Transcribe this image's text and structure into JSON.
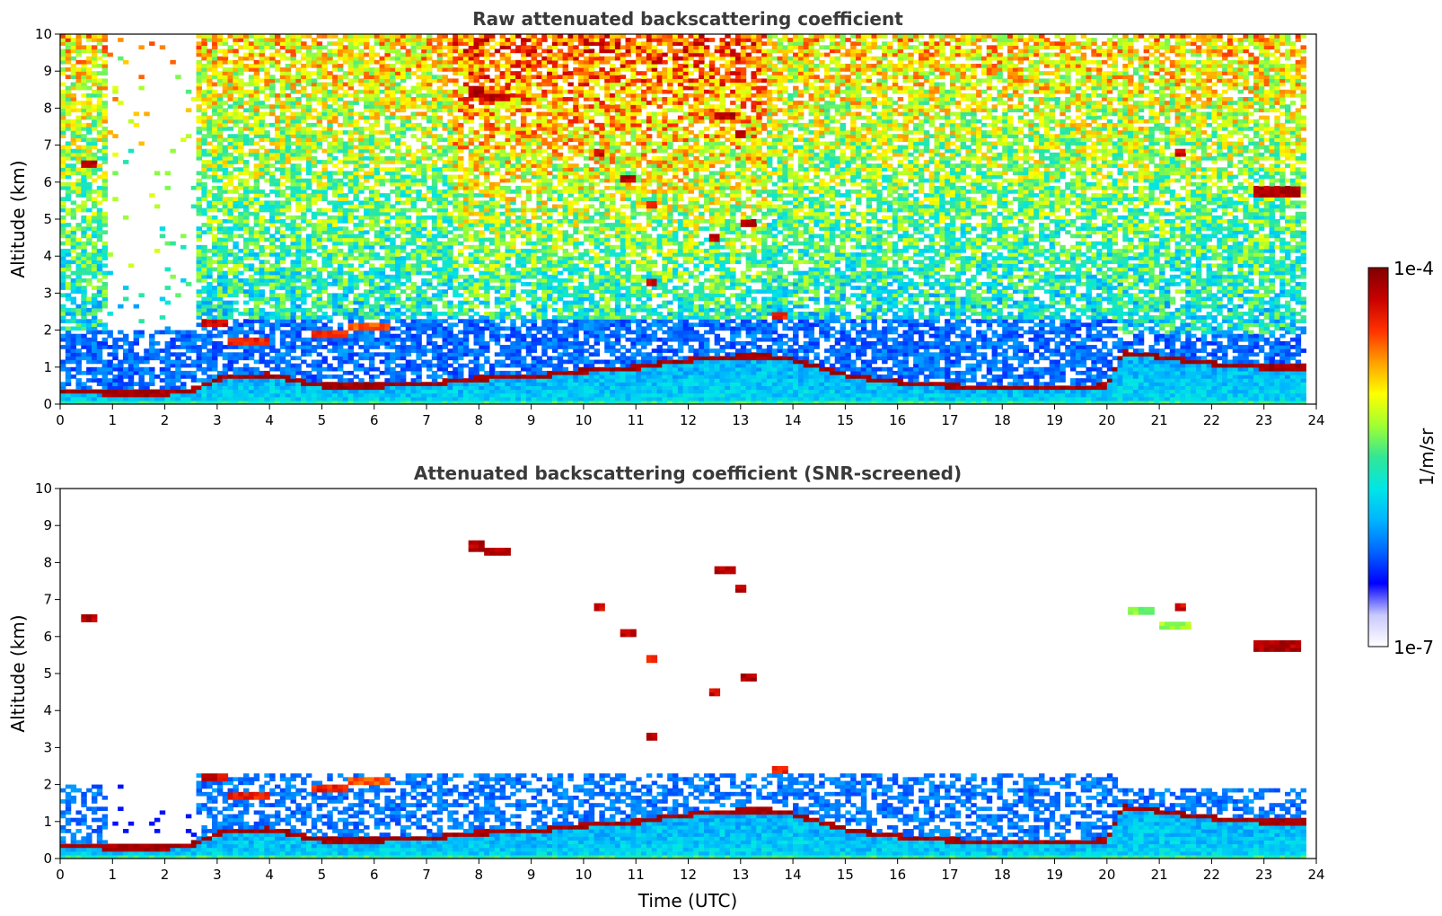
{
  "chart_data": [
    {
      "type": "heatmap",
      "title": "Raw attenuated backscattering coefficient",
      "xlabel": "",
      "ylabel": "Altitude (km)",
      "xlim": [
        0,
        24
      ],
      "ylim": [
        0,
        10
      ],
      "xticks": [
        "0",
        "1",
        "2",
        "3",
        "4",
        "5",
        "6",
        "7",
        "8",
        "9",
        "10",
        "11",
        "12",
        "13",
        "14",
        "15",
        "16",
        "17",
        "18",
        "19",
        "20",
        "21",
        "22",
        "23",
        "24"
      ],
      "yticks": [
        "0",
        "1",
        "2",
        "3",
        "4",
        "5",
        "6",
        "7",
        "8",
        "9",
        "10"
      ],
      "grid": false,
      "boundary_layer": [
        [
          0,
          0.35
        ],
        [
          1,
          0.3
        ],
        [
          2,
          0.3
        ],
        [
          2.6,
          0.4
        ],
        [
          3,
          0.7
        ],
        [
          4,
          0.8
        ],
        [
          5,
          0.5
        ],
        [
          6,
          0.5
        ],
        [
          7,
          0.55
        ],
        [
          8,
          0.7
        ],
        [
          9,
          0.75
        ],
        [
          10,
          0.9
        ],
        [
          11,
          1.0
        ],
        [
          12,
          1.2
        ],
        [
          13,
          1.3
        ],
        [
          13.6,
          1.3
        ],
        [
          14,
          1.2
        ],
        [
          15,
          0.8
        ],
        [
          16,
          0.6
        ],
        [
          17,
          0.5
        ],
        [
          18,
          0.45
        ],
        [
          19,
          0.45
        ],
        [
          20,
          0.5
        ],
        [
          20.3,
          1.4
        ],
        [
          21,
          1.3
        ],
        [
          22,
          1.1
        ],
        [
          23,
          1.0
        ],
        [
          23.8,
          1.0
        ]
      ],
      "features": [
        {
          "x0": 0.4,
          "x1": 0.65,
          "y": 6.5,
          "level": 0.98
        },
        {
          "x0": 2.7,
          "x1": 3.2,
          "y": 2.2,
          "level": 0.95
        },
        {
          "x0": 3.2,
          "x1": 4.0,
          "y": 1.7,
          "level": 0.9
        },
        {
          "x0": 4.8,
          "x1": 5.5,
          "y": 1.9,
          "level": 0.9
        },
        {
          "x0": 5.5,
          "x1": 6.3,
          "y": 2.1,
          "level": 0.85
        },
        {
          "x0": 7.8,
          "x1": 8.1,
          "y": 8.45,
          "level": 0.98
        },
        {
          "x0": 8.1,
          "x1": 8.6,
          "y": 8.3,
          "level": 0.97
        },
        {
          "x0": 10.2,
          "x1": 10.4,
          "y": 6.8,
          "level": 0.95
        },
        {
          "x0": 10.7,
          "x1": 11.0,
          "y": 6.1,
          "level": 0.98
        },
        {
          "x0": 11.2,
          "x1": 11.4,
          "y": 5.4,
          "level": 0.9
        },
        {
          "x0": 12.4,
          "x1": 12.6,
          "y": 4.5,
          "level": 0.95
        },
        {
          "x0": 12.5,
          "x1": 12.9,
          "y": 7.8,
          "level": 0.98
        },
        {
          "x0": 12.9,
          "x1": 13.1,
          "y": 7.3,
          "level": 0.97
        },
        {
          "x0": 13.0,
          "x1": 13.3,
          "y": 4.9,
          "level": 0.98
        },
        {
          "x0": 11.2,
          "x1": 11.4,
          "y": 3.3,
          "level": 0.95
        },
        {
          "x0": 13.6,
          "x1": 13.9,
          "y": 2.4,
          "level": 0.9
        },
        {
          "x0": 20.4,
          "x1": 20.9,
          "y": 6.7,
          "level": 0.6
        },
        {
          "x0": 21.0,
          "x1": 21.6,
          "y": 6.3,
          "level": 0.62
        },
        {
          "x0": 21.3,
          "x1": 21.5,
          "y": 6.8,
          "level": 0.95
        },
        {
          "x0": 22.8,
          "x1": 23.7,
          "y": 5.75,
          "level": 0.98
        }
      ]
    },
    {
      "type": "heatmap",
      "title": "Attenuated backscattering coefficient (SNR-screened)",
      "xlabel": "Time (UTC)",
      "ylabel": "Altitude (km)",
      "xlim": [
        0,
        24
      ],
      "ylim": [
        0,
        10
      ],
      "xticks": [
        "0",
        "1",
        "2",
        "3",
        "4",
        "5",
        "6",
        "7",
        "8",
        "9",
        "10",
        "11",
        "12",
        "13",
        "14",
        "15",
        "16",
        "17",
        "18",
        "19",
        "20",
        "21",
        "22",
        "23",
        "24"
      ],
      "yticks": [
        "0",
        "1",
        "2",
        "3",
        "4",
        "5",
        "6",
        "7",
        "8",
        "9",
        "10"
      ],
      "grid": false,
      "screened": true
    }
  ],
  "colorbar": {
    "label": "1/m/sr",
    "max_label": "1e-4",
    "min_label": "1e-7",
    "scale": "log",
    "range": [
      1e-07,
      0.0001
    ],
    "colors": [
      "#ffffff",
      "#c8c8ff",
      "#0000ff",
      "#0064ff",
      "#00b4ff",
      "#00e6e6",
      "#32e696",
      "#a0ff32",
      "#ffff00",
      "#ffa000",
      "#ff3200",
      "#c80000",
      "#800000"
    ]
  }
}
